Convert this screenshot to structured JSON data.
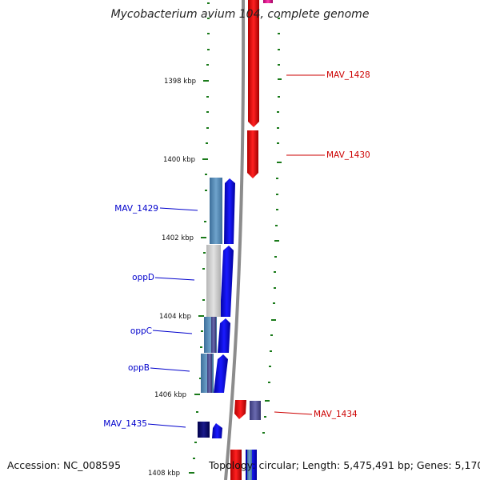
{
  "title": "Mycobacterium avium 104, complete genome",
  "accession": "Accession: NC_008595",
  "summary": "Topology: circular; Length: 5,475,491 bp; Genes: 5,170",
  "colors": {
    "forward_gene": "#ff0000",
    "reverse_gene": "#0000ff",
    "forward_label": "#cc0000",
    "reverse_label": "#0000cc",
    "backbone": "#888888",
    "tick": "#1a7a1a"
  },
  "ticks": [
    "1398 kbp",
    "1400 kbp",
    "1402 kbp",
    "1404 kbp",
    "1406 kbp",
    "1408 kbp"
  ],
  "forward_labels": [
    "MAV_1428",
    "MAV_1430",
    "MAV_1434"
  ],
  "reverse_labels": [
    "MAV_1429",
    "oppD",
    "oppC",
    "oppB",
    "MAV_1435"
  ]
}
